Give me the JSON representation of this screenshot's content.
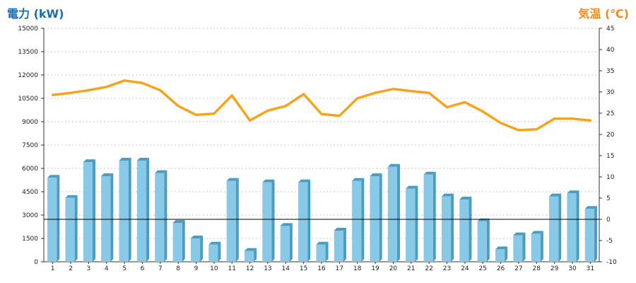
{
  "chart_data": {
    "type": "bar+line",
    "y_left_label": "電力 (kW)",
    "y_right_label": "気温 (℃)",
    "categories": [
      "1",
      "2",
      "3",
      "4",
      "5",
      "6",
      "7",
      "8",
      "9",
      "10",
      "11",
      "12",
      "13",
      "14",
      "15",
      "16",
      "17",
      "18",
      "19",
      "20",
      "21",
      "22",
      "23",
      "24",
      "25",
      "26",
      "27",
      "28",
      "29",
      "30",
      "31"
    ],
    "y_left_ticks": [
      0,
      1500,
      3000,
      4500,
      6000,
      7500,
      9000,
      10500,
      12000,
      13500,
      15000
    ],
    "y_right_ticks": [
      -10,
      -5,
      0,
      5,
      10,
      15,
      20,
      25,
      30,
      35,
      40,
      45
    ],
    "ylim_left": [
      0,
      15000
    ],
    "ylim_right": [
      -10,
      45
    ],
    "grid": true,
    "series": [
      {
        "type": "bar",
        "axis": "left",
        "color": "#87c9e6",
        "values": [
          5400,
          4100,
          6400,
          5500,
          6500,
          6500,
          5700,
          2500,
          1500,
          1100,
          5200,
          700,
          5100,
          2300,
          5100,
          1100,
          2000,
          5200,
          5500,
          6100,
          4700,
          5600,
          4200,
          4000,
          2600,
          800,
          1700,
          1800,
          4200,
          4400,
          3400
        ]
      },
      {
        "type": "line",
        "axis": "right",
        "color": "#f5a41e",
        "values": [
          29.3,
          29.8,
          30.4,
          31.2,
          32.7,
          32.1,
          30.4,
          26.7,
          24.6,
          24.9,
          29.2,
          23.3,
          25.6,
          26.7,
          29.5,
          24.8,
          24.4,
          28.5,
          29.8,
          30.7,
          30.2,
          29.8,
          26.4,
          27.6,
          25.4,
          22.7,
          21.0,
          21.2,
          23.7,
          23.7,
          23.3
        ]
      }
    ],
    "colors": {
      "bar_front": "#87c9e6",
      "bar_side": "#4b9cbf",
      "bar_top": "#c3e6f5",
      "line": "#f5a41e",
      "left_title": "#1a6ab0",
      "right_title": "#f08a1c",
      "zero_line": "#000000"
    }
  }
}
